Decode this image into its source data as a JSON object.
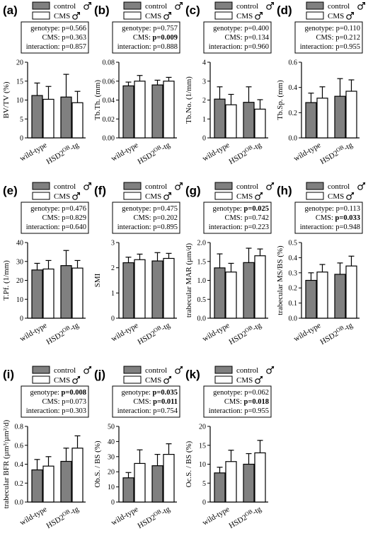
{
  "legend": {
    "control": "control",
    "cms": "CMS"
  },
  "colors": {
    "control": "#808080",
    "cms": "#ffffff",
    "stroke": "#000000"
  },
  "chart_data": [
    {
      "id": "a",
      "panel": "(a)",
      "type": "bar",
      "symbol": "male",
      "ylabel": "BV/TV (%)",
      "categories": [
        "wild-type",
        "HSD2OB-tg"
      ],
      "ylim": [
        0,
        20
      ],
      "yticks": [
        "0",
        "5",
        "10",
        "15",
        "20"
      ],
      "series": [
        {
          "name": "control",
          "values": [
            11.2,
            10.8
          ],
          "err": [
            3.3,
            6.0
          ]
        },
        {
          "name": "CMS",
          "values": [
            10.2,
            9.3
          ],
          "err": [
            3.4,
            3.0
          ]
        }
      ],
      "stats": [
        {
          "label": "genotype:",
          "value": "p=0.566",
          "bold": false
        },
        {
          "label": "CMS:",
          "value": "p=0.363",
          "bold": false
        },
        {
          "label": "interaction:",
          "value": "p=0.857",
          "bold": false
        }
      ]
    },
    {
      "id": "b",
      "panel": "(b)",
      "type": "bar",
      "symbol": "male",
      "ylabel": "Tb.Th. (mm)",
      "categories": [
        "wild-type",
        "HSD2OB-tg"
      ],
      "ylim": [
        0,
        0.08
      ],
      "yticks": [
        "0.00",
        "0.02",
        "0.04",
        "0.06",
        "0.08"
      ],
      "series": [
        {
          "name": "control",
          "values": [
            0.055,
            0.056
          ],
          "err": [
            0.004,
            0.005
          ]
        },
        {
          "name": "CMS",
          "values": [
            0.06,
            0.06
          ],
          "err": [
            0.006,
            0.004
          ]
        }
      ],
      "stats": [
        {
          "label": "genotype:",
          "value": "p=0.757",
          "bold": false
        },
        {
          "label": "CMS:",
          "value": "p=0.009",
          "bold": true
        },
        {
          "label": "interaction:",
          "value": "p=0.888",
          "bold": false
        }
      ]
    },
    {
      "id": "c",
      "panel": "(c)",
      "type": "bar",
      "symbol": "male",
      "ylabel": "Tb.No. (1/mm)",
      "categories": [
        "wild-type",
        "HSD2OB-tg"
      ],
      "ylim": [
        0,
        4
      ],
      "yticks": [
        "0",
        "1",
        "2",
        "3",
        "4"
      ],
      "series": [
        {
          "name": "control",
          "values": [
            2.05,
            1.88
          ],
          "err": [
            0.65,
            0.82
          ]
        },
        {
          "name": "CMS",
          "values": [
            1.75,
            1.52
          ],
          "err": [
            0.55,
            0.5
          ]
        }
      ],
      "stats": [
        {
          "label": "genotype:",
          "value": "p=0.400",
          "bold": false
        },
        {
          "label": "CMS:",
          "value": "p=0.134",
          "bold": false
        },
        {
          "label": "interaction:",
          "value": "p=0.960",
          "bold": false
        }
      ]
    },
    {
      "id": "d",
      "panel": "(d)",
      "type": "bar",
      "symbol": "male",
      "ylabel": "Tb.Sp. (mm)",
      "categories": [
        "wild-type",
        "HSD2OB-tg"
      ],
      "ylim": [
        0,
        0.6
      ],
      "yticks": [
        "0.0",
        "0.2",
        "0.4",
        "0.6"
      ],
      "series": [
        {
          "name": "control",
          "values": [
            0.28,
            0.33
          ],
          "err": [
            0.075,
            0.14
          ]
        },
        {
          "name": "CMS",
          "values": [
            0.315,
            0.37
          ],
          "err": [
            0.09,
            0.09
          ]
        }
      ],
      "stats": [
        {
          "label": "genotype:",
          "value": "p=0.110",
          "bold": false
        },
        {
          "label": "CMS:",
          "value": "p=0.212",
          "bold": false
        },
        {
          "label": "interaction:",
          "value": "p=0.955",
          "bold": false
        }
      ]
    },
    {
      "id": "e",
      "panel": "(e)",
      "type": "bar",
      "symbol": "male",
      "ylabel": "T.Pf. (1/mm)",
      "categories": [
        "wild-type",
        "HSD2OB-tg"
      ],
      "ylim": [
        0,
        40
      ],
      "yticks": [
        "0",
        "10",
        "20",
        "30",
        "40"
      ],
      "series": [
        {
          "name": "control",
          "values": [
            25.5,
            27.8
          ],
          "err": [
            3.5,
            8.0
          ]
        },
        {
          "name": "CMS",
          "values": [
            26.0,
            26.5
          ],
          "err": [
            4.5,
            4.0
          ]
        }
      ],
      "stats": [
        {
          "label": "genotype:",
          "value": "p=0.476",
          "bold": false
        },
        {
          "label": "CMS:",
          "value": "p=0.829",
          "bold": false
        },
        {
          "label": "interaction:",
          "value": "p=0.640",
          "bold": false
        }
      ]
    },
    {
      "id": "f",
      "panel": "(f)",
      "type": "bar",
      "symbol": "male",
      "ylabel": "SMI",
      "categories": [
        "wild-type",
        "HSD2OB-tg"
      ],
      "ylim": [
        0,
        3
      ],
      "yticks": [
        "0",
        "1",
        "2",
        "3"
      ],
      "series": [
        {
          "name": "control",
          "values": [
            2.2,
            2.27
          ],
          "err": [
            0.22,
            0.33
          ]
        },
        {
          "name": "CMS",
          "values": [
            2.32,
            2.37
          ],
          "err": [
            0.22,
            0.2
          ]
        }
      ],
      "stats": [
        {
          "label": "genotype:",
          "value": "p=0.475",
          "bold": false
        },
        {
          "label": "CMS:",
          "value": "p=0.202",
          "bold": false
        },
        {
          "label": "interaction:",
          "value": "p=0.895",
          "bold": false
        }
      ]
    },
    {
      "id": "g",
      "panel": "(g)",
      "type": "bar",
      "symbol": "female",
      "ylabel": "trabecular MAR (µm/d)",
      "categories": [
        "wild-type",
        "HSD2OB-tg"
      ],
      "ylim": [
        0,
        2.0
      ],
      "yticks": [
        "0.0",
        "0.5",
        "1.0",
        "1.5",
        "2.0"
      ],
      "series": [
        {
          "name": "control",
          "values": [
            1.33,
            1.47
          ],
          "err": [
            0.37,
            0.38
          ]
        },
        {
          "name": "CMS",
          "values": [
            1.22,
            1.65
          ],
          "err": [
            0.23,
            0.18
          ]
        }
      ],
      "stats": [
        {
          "label": "genotype:",
          "value": "p=0.025",
          "bold": true
        },
        {
          "label": "CMS:",
          "value": "p=0.742",
          "bold": false
        },
        {
          "label": "interaction:",
          "value": "p=0.223",
          "bold": false
        }
      ]
    },
    {
      "id": "h",
      "panel": "(h)",
      "type": "bar",
      "symbol": "female",
      "ylabel": "trabecular MS/BS (%)",
      "categories": [
        "wild-type",
        "HSD2OB-tg"
      ],
      "ylim": [
        0,
        0.5
      ],
      "yticks": [
        "0.0",
        "0.1",
        "0.2",
        "0.3",
        "0.4",
        "0.5"
      ],
      "series": [
        {
          "name": "control",
          "values": [
            0.25,
            0.29
          ],
          "err": [
            0.05,
            0.075
          ]
        },
        {
          "name": "CMS",
          "values": [
            0.305,
            0.345
          ],
          "err": [
            0.05,
            0.065
          ]
        }
      ],
      "stats": [
        {
          "label": "genotype:",
          "value": "p=0.113",
          "bold": false
        },
        {
          "label": "CMS:",
          "value": "p=0.033",
          "bold": true
        },
        {
          "label": "interaction:",
          "value": "p=0.948",
          "bold": false
        }
      ]
    },
    {
      "id": "i",
      "panel": "(i)",
      "type": "bar",
      "symbol": "female",
      "ylabel": "trabecular BFR (µm³/µm²/d)",
      "categories": [
        "wild-type",
        "HSD2OB-tg"
      ],
      "ylim": [
        0,
        0.8
      ],
      "yticks": [
        "0.0",
        "0.2",
        "0.4",
        "0.6",
        "0.8"
      ],
      "series": [
        {
          "name": "control",
          "values": [
            0.34,
            0.43
          ],
          "err": [
            0.11,
            0.14
          ]
        },
        {
          "name": "CMS",
          "values": [
            0.38,
            0.57
          ],
          "err": [
            0.1,
            0.13
          ]
        }
      ],
      "stats": [
        {
          "label": "genotype:",
          "value": "p=0.008",
          "bold": true
        },
        {
          "label": "CMS:",
          "value": "p=0.073",
          "bold": false
        },
        {
          "label": "interaction:",
          "value": "p=0.303",
          "bold": false
        }
      ]
    },
    {
      "id": "j",
      "panel": "(j)",
      "type": "bar",
      "symbol": "female",
      "ylabel": "Ob.S. / BS (%)",
      "categories": [
        "wild-type",
        "HSD2OB-tg"
      ],
      "ylim": [
        0,
        50
      ],
      "yticks": [
        "0",
        "10",
        "20",
        "30",
        "40",
        "50"
      ],
      "series": [
        {
          "name": "control",
          "values": [
            16.0,
            24.0
          ],
          "err": [
            3.5,
            7.5
          ]
        },
        {
          "name": "CMS",
          "values": [
            25.5,
            31.5
          ],
          "err": [
            9.0,
            7.0
          ]
        }
      ],
      "stats": [
        {
          "label": "genotype:",
          "value": "p=0.035",
          "bold": true
        },
        {
          "label": "CMS:",
          "value": "p=0.011",
          "bold": true
        },
        {
          "label": "interaction:",
          "value": "p=0.754",
          "bold": false
        }
      ]
    },
    {
      "id": "k",
      "panel": "(k)",
      "type": "bar",
      "symbol": "female",
      "ylabel": "Oc.S. / BS (%)",
      "categories": [
        "wild-type",
        "HSD2OB-tg"
      ],
      "ylim": [
        0,
        20
      ],
      "yticks": [
        "0",
        "5",
        "10",
        "15",
        "20"
      ],
      "series": [
        {
          "name": "control",
          "values": [
            7.7,
            10.0
          ],
          "err": [
            1.5,
            2.8
          ]
        },
        {
          "name": "CMS",
          "values": [
            10.7,
            13.0
          ],
          "err": [
            3.0,
            3.3
          ]
        }
      ],
      "stats": [
        {
          "label": "genotype:",
          "value": "p=0.062",
          "bold": false
        },
        {
          "label": "CMS:",
          "value": "p=0.018",
          "bold": true
        },
        {
          "label": "interaction:",
          "value": "p=0.955",
          "bold": false
        }
      ]
    }
  ]
}
